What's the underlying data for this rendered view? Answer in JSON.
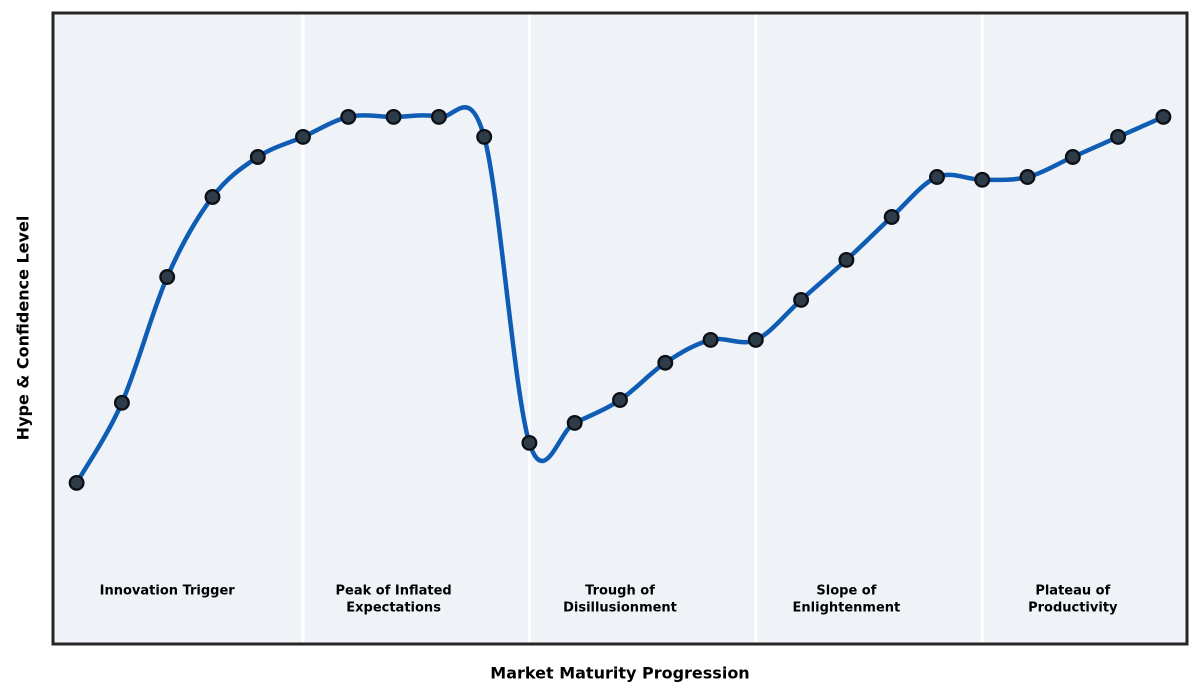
{
  "chart_data": {
    "type": "line",
    "title": "",
    "xlabel": "Market Maturity Progression",
    "ylabel": "Hype & Confidence Level",
    "x": [
      0,
      1,
      2,
      3,
      4,
      5,
      6,
      7,
      8,
      9,
      10,
      11,
      12,
      13,
      14,
      15,
      16,
      17,
      18,
      19,
      20,
      21,
      22,
      23,
      24
    ],
    "values": [
      28,
      42,
      64,
      78,
      85,
      88.5,
      92,
      92,
      92,
      88.5,
      35,
      38.5,
      42.5,
      49,
      53,
      53,
      60,
      67,
      74.5,
      81.5,
      81,
      81.5,
      85,
      88.5,
      92
    ],
    "xlim": [
      -0.5,
      24.5
    ],
    "ylim": [
      0,
      110
    ],
    "grid": false,
    "legend": "none",
    "x_tick_labels": [],
    "y_tick_labels": [],
    "line_smoothing": "catmull-rom-spline",
    "show_markers": true,
    "phases": [
      {
        "label": "Innovation Trigger",
        "lines": [
          "Innovation Trigger"
        ],
        "start_x": 0,
        "end_x": 4,
        "label_x": 2
      },
      {
        "label": "Peak of Inflated Expectations",
        "lines": [
          "Peak of Inflated",
          "Expectations"
        ],
        "start_x": 5,
        "end_x": 9,
        "label_x": 7
      },
      {
        "label": "Trough of Disillusionment",
        "lines": [
          "Trough of",
          "Disillusionment"
        ],
        "start_x": 10,
        "end_x": 14,
        "label_x": 12
      },
      {
        "label": "Slope of Enlightenment",
        "lines": [
          "Slope of",
          "Enlightenment"
        ],
        "start_x": 15,
        "end_x": 19,
        "label_x": 17
      },
      {
        "label": "Plateau of Productivity",
        "lines": [
          "Plateau of",
          "Productivity"
        ],
        "start_x": 20,
        "end_x": 24,
        "label_x": 22
      }
    ],
    "divider_x": [
      5,
      10,
      15,
      20
    ],
    "phase_label_value": 8.5,
    "colors": {
      "line": "#0f5cb5",
      "marker_fill": "#2e3b49",
      "marker_edge": "#0b1016",
      "plot_background": "#eff3f8",
      "divider": "#ffffff",
      "spine": "#262626",
      "text": "#000000"
    }
  }
}
